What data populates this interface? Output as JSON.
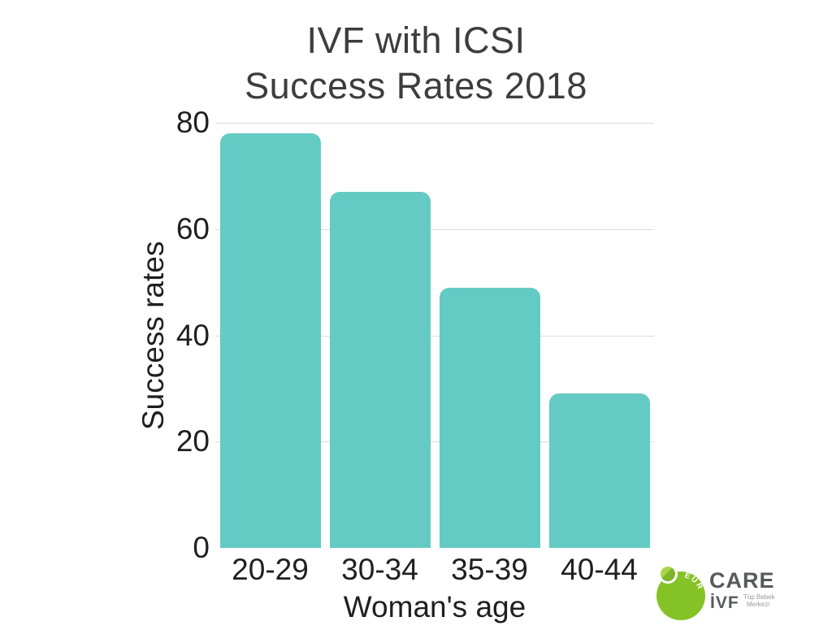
{
  "title": {
    "line1": "IVF with ICSI",
    "line2": "Success Rates 2018"
  },
  "chart_data": {
    "type": "bar",
    "title": "IVF with ICSI Success Rates 2018",
    "categories": [
      "20-29",
      "30-34",
      "35-39",
      "40-44"
    ],
    "values": [
      78,
      67,
      49,
      29
    ],
    "xlabel": "Woman's age",
    "ylabel": "Success rates",
    "ylim": [
      0,
      80
    ],
    "yticks": [
      0,
      20,
      40,
      60,
      80
    ],
    "grid": true,
    "legend": "none",
    "bar_color": "#64cac4",
    "gridline_color": "#dcdcdc",
    "text_color": "#1f1f1f",
    "title_color": "#3d3d3d"
  },
  "logo": {
    "arc_text": "EURO",
    "brand": "CARE",
    "brand_sub": "İVF",
    "tagline_line1": "Tüp Bebek",
    "tagline_line2": "Merkezi",
    "circle_color": "#85c226",
    "brand_color": "#58595b",
    "tagline_color": "#97989a"
  }
}
